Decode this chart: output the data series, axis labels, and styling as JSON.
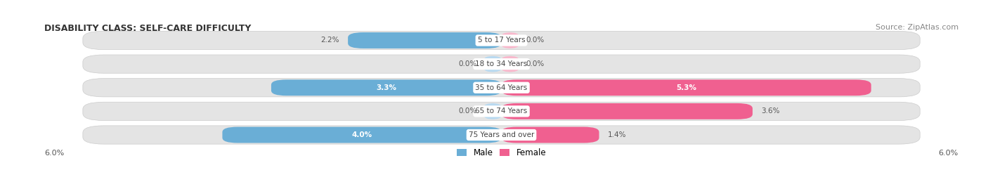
{
  "title": "DISABILITY CLASS: SELF-CARE DIFFICULTY",
  "source": "Source: ZipAtlas.com",
  "categories": [
    "5 to 17 Years",
    "18 to 34 Years",
    "35 to 64 Years",
    "65 to 74 Years",
    "75 Years and over"
  ],
  "male_values": [
    2.2,
    0.0,
    3.3,
    0.0,
    4.0
  ],
  "female_values": [
    0.0,
    0.0,
    5.3,
    3.6,
    1.4
  ],
  "max_val": 6.0,
  "male_color": "#6aaed6",
  "male_color_light": "#b8d9f0",
  "female_color": "#f06090",
  "female_color_light": "#f8b8cc",
  "row_bg": "#e4e4e4",
  "title_fontsize": 9,
  "source_fontsize": 8,
  "label_fontsize": 8,
  "axis_label": "6.0%",
  "legend_male": "Male",
  "legend_female": "Female"
}
